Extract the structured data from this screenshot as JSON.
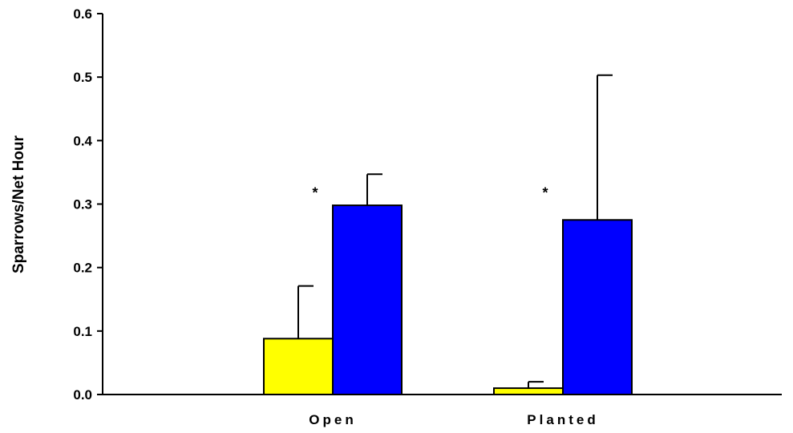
{
  "chart_data": {
    "type": "bar",
    "title": "",
    "xlabel": "",
    "ylabel": "Sparrows/Net Hour",
    "categories": [
      "Open",
      "Planted"
    ],
    "ylim": [
      0,
      0.6
    ],
    "yticks": [
      "0.0",
      "0.1",
      "0.2",
      "0.3",
      "0.4",
      "0.5",
      "0.6"
    ],
    "grid": false,
    "legend": "none",
    "series": [
      {
        "color": "#ffff00",
        "values": [
          0.088,
          0.01
        ],
        "error_upper": [
          0.083,
          0.01
        ]
      },
      {
        "color": "#0000ff",
        "values": [
          0.298,
          0.275
        ],
        "error_upper": [
          0.049,
          0.228
        ]
      }
    ],
    "annotations": [
      {
        "text": "*",
        "category": "Open",
        "y": 0.315
      },
      {
        "text": "*",
        "category": "Planted",
        "y": 0.315
      }
    ]
  }
}
